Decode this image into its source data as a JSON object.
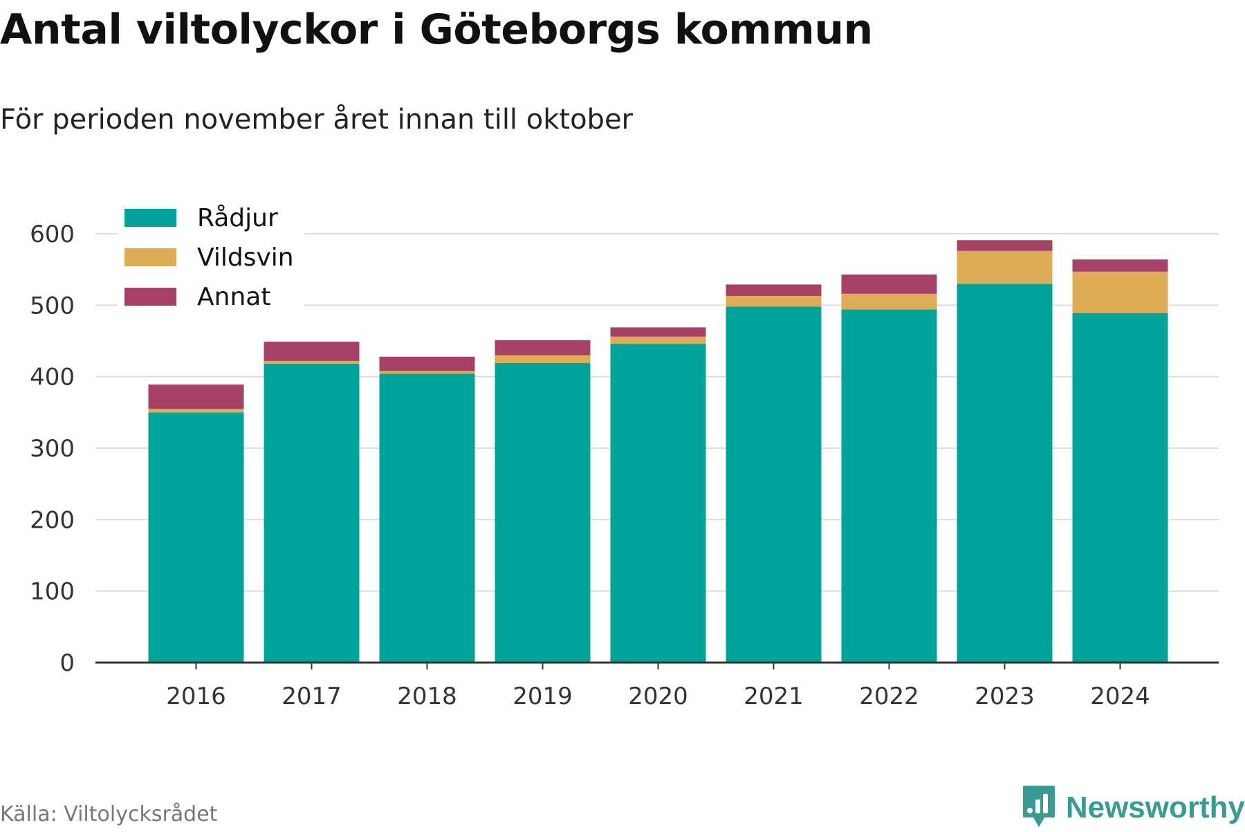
{
  "header": {
    "title": "Antal viltolyckor i Göteborgs kommun",
    "subtitle": "För perioden november året innan till oktober"
  },
  "footer": {
    "source": "Källa: Viltolycksrådet",
    "brand": "Newsworthy",
    "brand_icon": "bar-chart-pin-icon"
  },
  "colors": {
    "radjur": "#00a39a",
    "vildsvin": "#ddac57",
    "annat": "#a64067",
    "grid": "#dddddd",
    "axis": "#333333",
    "brand": "#3a9a94"
  },
  "chart_data": {
    "type": "bar",
    "stacked": true,
    "categories": [
      "2016",
      "2017",
      "2018",
      "2019",
      "2020",
      "2021",
      "2022",
      "2023",
      "2024"
    ],
    "series": [
      {
        "name": "Rådjur",
        "color": "#00a39a",
        "values": [
          350,
          418,
          404,
          419,
          446,
          498,
          494,
          530,
          489
        ]
      },
      {
        "name": "Vildsvin",
        "color": "#ddac57",
        "values": [
          5,
          4,
          4,
          11,
          10,
          15,
          22,
          46,
          58
        ]
      },
      {
        "name": "Annat",
        "color": "#a64067",
        "values": [
          34,
          27,
          20,
          21,
          13,
          16,
          27,
          15,
          17
        ]
      }
    ],
    "yticks": [
      0,
      100,
      200,
      300,
      400,
      500,
      600
    ],
    "ylim": [
      0,
      600
    ],
    "grid": true,
    "legend_position": "top-left"
  }
}
